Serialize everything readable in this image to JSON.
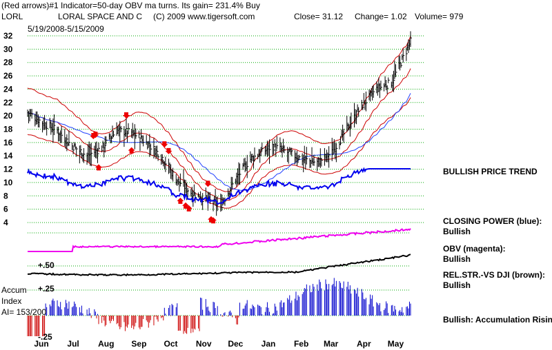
{
  "header": {
    "line1": "(Red arrows)#1 Indicator=50-day OBV ma turns. Its gain= 231.4% Buy",
    "ticker": "LORL",
    "company": "LORAL SPACE AND C",
    "copyright": "(C) 2009 www.tigersoft.com",
    "close": "Close=  31.12",
    "change": "Change= 1.02",
    "volume": "Volume= 979",
    "date_range": "5/19/2008-5/15/2009"
  },
  "notes": {
    "trend": "BULLISH PRICE TREND",
    "closing_power_label": "CLOSING POWER (blue):",
    "closing_power_value": "Bullish",
    "obv_label": "OBV (magenta):",
    "obv_value": "Bullish",
    "relstr_label": "REL.STR.-VS DJI (brown):",
    "relstr_value": "Bullish",
    "accum_note": "Bullish: Accumulation Rising"
  },
  "accum": {
    "title_line1": "Accum",
    "title_line2": "Index",
    "ai": "AI= 153/200",
    "plus": "+.25",
    "minus": "-.25",
    "relstr_mark": "+.50"
  },
  "colors": {
    "price_bars": "#000000",
    "bands_outer": "#cc0000",
    "ma_blue": "#1f3fff",
    "closing_power": "#0000ee",
    "obv": "#ee00ee",
    "relstr": "#000000",
    "accum_pos": "#0000cc",
    "accum_neg": "#cc0000",
    "arrows": "#ee0000",
    "grid": "#00aa00"
  },
  "chart_data": {
    "type": "line",
    "title": "LORAL SPACE AND C",
    "xlabel": "",
    "ylabel": "",
    "ylim": [
      4,
      32
    ],
    "y_ticks": [
      32,
      30,
      28,
      26,
      24,
      22,
      20,
      18,
      16,
      14,
      12,
      10,
      8,
      6,
      4
    ],
    "x_ticks": [
      "Jun",
      "Jul",
      "Aug",
      "Sep",
      "Oct",
      "Nov",
      "Dec",
      "Jan",
      "Feb",
      "Mar",
      "Apr",
      "May"
    ],
    "grid": true,
    "price_close": [
      [
        "2008-05-19",
        20.5
      ],
      [
        "2008-06-02",
        19.0
      ],
      [
        "2008-06-16",
        17.8
      ],
      [
        "2008-06-30",
        15.5
      ],
      [
        "2008-07-14",
        14.0
      ],
      [
        "2008-07-28",
        15.2
      ],
      [
        "2008-08-11",
        17.8
      ],
      [
        "2008-08-25",
        17.5
      ],
      [
        "2008-09-08",
        16.0
      ],
      [
        "2008-09-22",
        14.0
      ],
      [
        "2008-10-06",
        10.5
      ],
      [
        "2008-10-20",
        8.5
      ],
      [
        "2008-11-03",
        7.5
      ],
      [
        "2008-11-17",
        6.5
      ],
      [
        "2008-12-01",
        10.5
      ],
      [
        "2008-12-15",
        13.5
      ],
      [
        "2009-01-05",
        15.5
      ],
      [
        "2009-01-19",
        14.5
      ],
      [
        "2009-02-02",
        13.5
      ],
      [
        "2009-02-16",
        13.0
      ],
      [
        "2009-03-02",
        14.5
      ],
      [
        "2009-03-16",
        18.0
      ],
      [
        "2009-03-30",
        21.5
      ],
      [
        "2009-04-13",
        24.0
      ],
      [
        "2009-04-27",
        25.0
      ],
      [
        "2009-05-15",
        31.12
      ]
    ],
    "series": [
      {
        "name": "CLOSING POWER (blue)",
        "signal": "Bullish"
      },
      {
        "name": "OBV (magenta)",
        "signal": "Bullish"
      },
      {
        "name": "REL.STR.-VS DJI (brown)",
        "signal": "Bullish"
      }
    ],
    "accumulation_index": {
      "ai": "153/200",
      "range": [
        -0.25,
        0.25
      ]
    }
  }
}
